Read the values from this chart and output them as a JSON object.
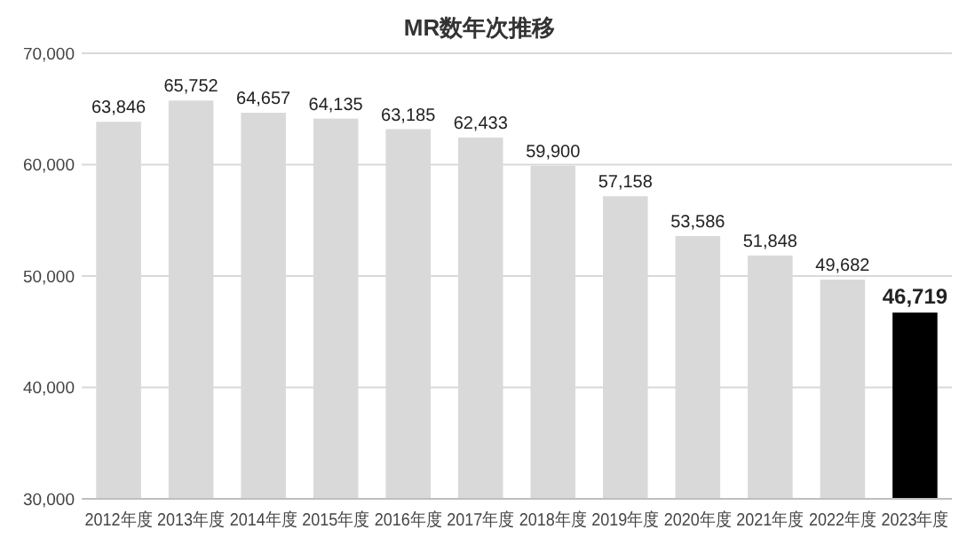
{
  "chart_data": {
    "type": "bar",
    "title": "MR数年次推移",
    "categories": [
      "2012年度",
      "2013年度",
      "2014年度",
      "2015年度",
      "2016年度",
      "2017年度",
      "2018年度",
      "2019年度",
      "2020年度",
      "2021年度",
      "2022年度",
      "2023年度"
    ],
    "values": [
      63846,
      65752,
      64657,
      64135,
      63185,
      62433,
      59900,
      57158,
      53586,
      51848,
      49682,
      46719
    ],
    "colors": [
      "#d9d9d9",
      "#d9d9d9",
      "#d9d9d9",
      "#d9d9d9",
      "#d9d9d9",
      "#d9d9d9",
      "#d9d9d9",
      "#d9d9d9",
      "#d9d9d9",
      "#d9d9d9",
      "#d9d9d9",
      "#000000"
    ],
    "ylim": [
      30000,
      70000
    ],
    "yticks": [
      {
        "value": 30000,
        "label": "30,000"
      },
      {
        "value": 40000,
        "label": "40,000"
      },
      {
        "value": 50000,
        "label": "50,000"
      },
      {
        "value": 60000,
        "label": "60,000"
      },
      {
        "value": 70000,
        "label": "70,000"
      }
    ],
    "value_labels": [
      "63,846",
      "65,752",
      "64,657",
      "64,135",
      "63,185",
      "62,433",
      "59,900",
      "57,158",
      "53,586",
      "51,848",
      "49,682",
      "46,719"
    ],
    "grid": "y"
  }
}
